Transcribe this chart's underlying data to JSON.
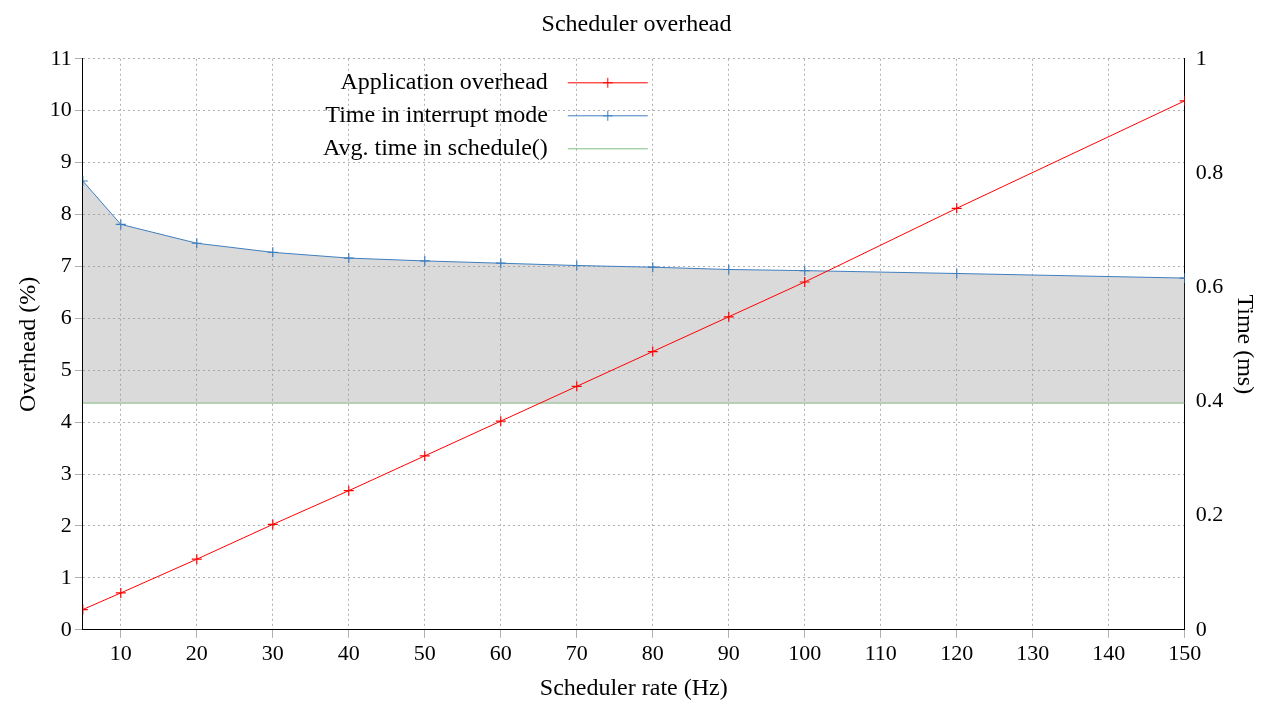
{
  "chart_data": {
    "type": "line",
    "title": "Scheduler overhead",
    "xlabel": "Scheduler rate (Hz)",
    "ylabel": "Overhead (%)",
    "y2label": "Time (ms)",
    "xlim": [
      5,
      150
    ],
    "xticks": [
      10,
      20,
      30,
      40,
      50,
      60,
      70,
      80,
      90,
      100,
      110,
      120,
      130,
      140,
      150
    ],
    "ylim": [
      0,
      11
    ],
    "yticks": [
      0,
      1,
      2,
      3,
      4,
      5,
      6,
      7,
      8,
      9,
      10,
      11
    ],
    "y2lim": [
      0,
      1
    ],
    "y2ticks": [
      0,
      0.2,
      0.4,
      0.6,
      0.8,
      1
    ],
    "grid": true,
    "legend": "top left",
    "line_style": "solid",
    "series": [
      {
        "name": "Application overhead",
        "color": "#ff0000",
        "marker": "cross",
        "x": [
          5,
          10,
          20,
          30,
          40,
          50,
          60,
          70,
          80,
          90,
          100,
          120,
          150
        ],
        "values": [
          0.39,
          0.71,
          1.36,
          2.03,
          2.68,
          3.35,
          4.02,
          4.69,
          5.36,
          6.03,
          6.7,
          8.12,
          10.19
        ]
      },
      {
        "name": "Time in interrupt mode",
        "type": "area",
        "color": "#3f7fc0",
        "marker": "cross",
        "axis": "y2",
        "x": [
          5,
          10,
          20,
          30,
          40,
          50,
          60,
          70,
          80,
          90,
          100,
          120,
          150
        ],
        "values": [
          0.786,
          0.71,
          0.677,
          0.661,
          0.651,
          0.646,
          0.642,
          0.638,
          0.635,
          0.631,
          0.629,
          0.624,
          0.616
        ]
      },
      {
        "name": "Avg. time in schedule()",
        "color": "#80c080",
        "marker": "none",
        "axis": "y2",
        "x": [
          5,
          150
        ],
        "values": [
          0.397,
          0.397
        ]
      }
    ]
  }
}
